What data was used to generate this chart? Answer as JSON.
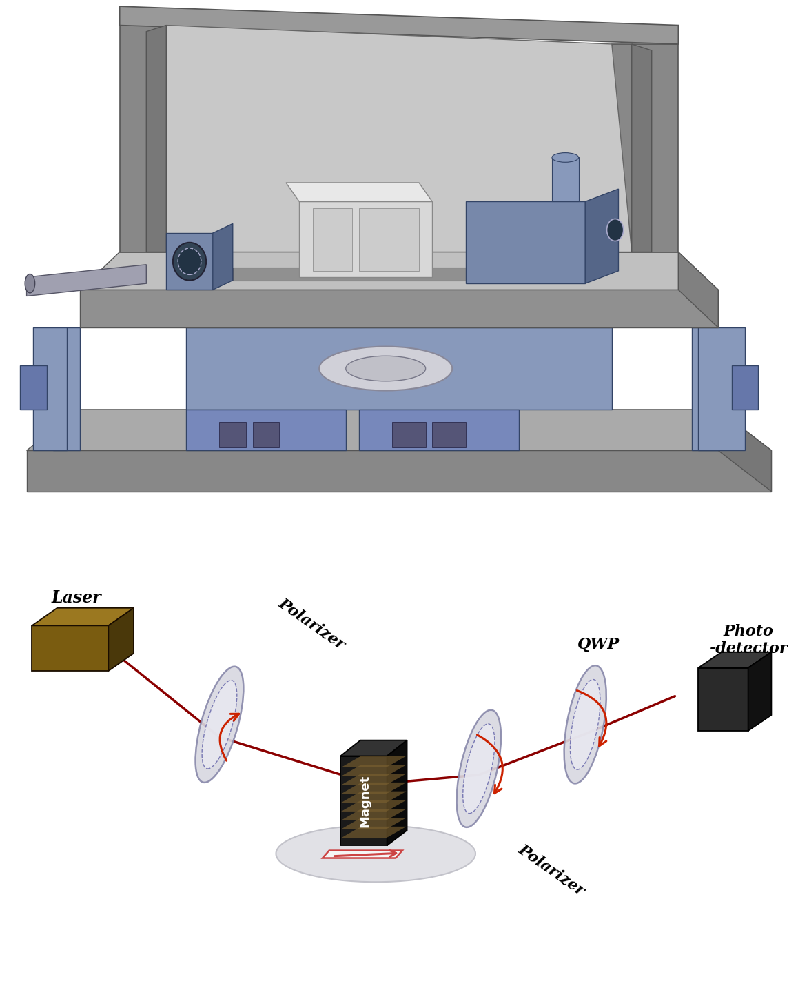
{
  "background_color": "#ffffff",
  "top_bg_color": "#c0c0c0",
  "fig_width": 11.58,
  "fig_height": 14.62,
  "dpi": 100,
  "labels": {
    "laser": "Laser",
    "polarizer1": "Polarizer",
    "polarizer2": "Polarizer",
    "qwp": "QWP",
    "photodetector": "Photo\n-detector",
    "magnet": "Magnet"
  },
  "beam_color": "#8B0000",
  "arrow_color": "#CC2200",
  "laser_color_front": "#7A5C10",
  "laser_color_top": "#9B7820",
  "laser_color_side": "#4A380A",
  "magnet_front": "#1a1a1a",
  "magnet_top": "#333333",
  "magnet_side": "#0a0a0a",
  "coil_color": "#7a6030",
  "disk_face": "#d8d8e0",
  "disk_edge": "#8888aa",
  "disk_inner": "#e8e8f0",
  "det_front": "#2a2a2a",
  "det_top": "#3a3a3a",
  "det_side": "#111111",
  "dish_face": "#e0e0e5",
  "dish_edge": "#aaaaaa",
  "sample_rect_color": "#cc4444",
  "plate_top": "#b8b8b8",
  "plate_side": "#888888",
  "plate_front": "#999999",
  "frame_color": "#909090",
  "frame_inner": "#c8c8c8",
  "blue_part": "#8899bb",
  "dark_blue": "#667799"
}
